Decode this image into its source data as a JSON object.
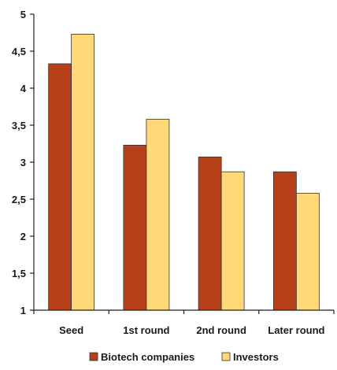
{
  "chart_data": {
    "type": "bar",
    "categories": [
      "Seed",
      "1st round",
      "2nd round",
      "Later round"
    ],
    "series": [
      {
        "name": "Biotech companies",
        "values": [
          4.33,
          3.23,
          3.07,
          2.87
        ],
        "color": "#b5401a"
      },
      {
        "name": "Investors",
        "values": [
          4.73,
          3.58,
          2.87,
          2.58
        ],
        "color": "#ffd878"
      }
    ],
    "ylim": [
      1,
      5
    ],
    "yticks": [
      1,
      1.5,
      2,
      2.5,
      3,
      3.5,
      4,
      4.5,
      5
    ],
    "ytick_labels": [
      "1",
      "1,5",
      "2",
      "2,5",
      "3",
      "3,5",
      "4",
      "4,5",
      "5"
    ],
    "title": "",
    "xlabel": "",
    "ylabel": "",
    "grid": false,
    "legend_position": "bottom"
  }
}
